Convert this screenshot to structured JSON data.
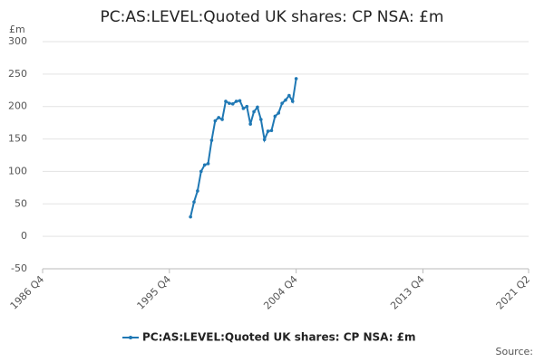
{
  "chart_data": {
    "type": "line",
    "title": "PC:AS:LEVEL:Quoted UK shares: CP NSA: £m",
    "y_label": "£m",
    "source": "Source:",
    "x": [
      "1997 Q2",
      "1997 Q3",
      "1997 Q4",
      "1998 Q1",
      "1998 Q2",
      "1998 Q3",
      "1998 Q4",
      "1999 Q1",
      "1999 Q2",
      "1999 Q3",
      "1999 Q4",
      "2000 Q1",
      "2000 Q2",
      "2000 Q3",
      "2000 Q4",
      "2001 Q1",
      "2001 Q2",
      "2001 Q3",
      "2001 Q4",
      "2002 Q1",
      "2002 Q2",
      "2002 Q3",
      "2002 Q4",
      "2003 Q1",
      "2003 Q2",
      "2003 Q3",
      "2003 Q4",
      "2004 Q1",
      "2004 Q2",
      "2004 Q3",
      "2004 Q4"
    ],
    "series": [
      {
        "name": "PC:AS:LEVEL:Quoted UK shares: CP NSA: £m",
        "color": "#1f78b4",
        "values": [
          30,
          53,
          70,
          100,
          110,
          112,
          148,
          178,
          183,
          180,
          208,
          205,
          204,
          208,
          209,
          197,
          200,
          173,
          192,
          199,
          180,
          149,
          162,
          163,
          185,
          190,
          205,
          210,
          217,
          208,
          243
        ]
      }
    ],
    "xlim": [
      "1986 Q4",
      "2021 Q2"
    ],
    "xticks": [
      "1986 Q4",
      "1995 Q4",
      "2004 Q4",
      "2013 Q4",
      "2021 Q2"
    ],
    "ylim": [
      -50,
      300
    ],
    "yticks": [
      -50,
      0,
      50,
      100,
      150,
      200,
      250,
      300
    ],
    "grid": true
  }
}
